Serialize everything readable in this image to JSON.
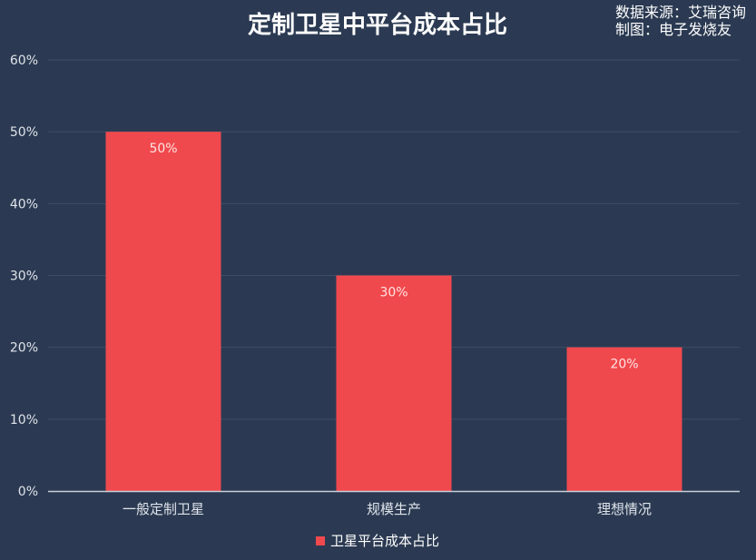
{
  "source_note": {
    "line1": "数据来源：艾瑞咨询",
    "line2": "制图：电子发烧友"
  },
  "colors": {
    "background": "#2b3a52",
    "bar": "#f0494d",
    "grid": "#3e4d66",
    "axis": "#c9ced8",
    "text": "#ffffff",
    "tick_text": "#dfe3ea",
    "label_text": "#ffe3e3"
  },
  "chart_data": {
    "type": "bar",
    "title": "定制卫星中平台成本占比",
    "categories": [
      "一般定制卫星",
      "规模生产",
      "理想情况"
    ],
    "series": [
      {
        "name": "卫星平台成本占比",
        "values": [
          50,
          30,
          20
        ],
        "data_labels": [
          "50%",
          "30%",
          "20%"
        ]
      }
    ],
    "ylim": [
      0,
      60
    ],
    "yticks": [
      0,
      10,
      20,
      30,
      40,
      50,
      60
    ],
    "ytick_labels": [
      "0%",
      "10%",
      "20%",
      "30%",
      "40%",
      "50%",
      "60%"
    ],
    "grid": true,
    "legend_position": "bottom-center"
  }
}
